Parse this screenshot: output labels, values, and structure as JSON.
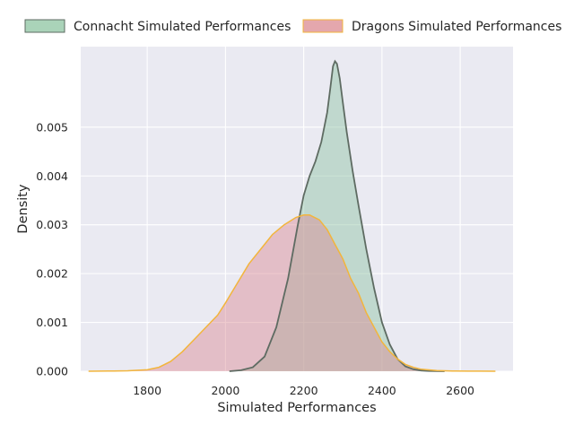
{
  "chart_data": {
    "type": "area",
    "title": "",
    "xlabel": "Simulated Performances",
    "ylabel": "Density",
    "xlim": [
      1630,
      2735
    ],
    "ylim": [
      0,
      0.00665
    ],
    "x_ticks": [
      1800,
      2000,
      2200,
      2400,
      2600
    ],
    "y_ticks": [
      0.0,
      0.001,
      0.002,
      0.003,
      0.004,
      0.005
    ],
    "y_tick_labels": [
      "0.000",
      "0.001",
      "0.002",
      "0.003",
      "0.004",
      "0.005"
    ],
    "grid": true,
    "legend": {
      "placement": "top",
      "columns": 2
    },
    "series": [
      {
        "name": "Connacht Simulated Performances",
        "fill_color": "#8dc4a2",
        "line_color": "#5e6b62",
        "x": [
          2010,
          2040,
          2070,
          2100,
          2130,
          2160,
          2185,
          2200,
          2215,
          2230,
          2245,
          2260,
          2268,
          2275,
          2280,
          2285,
          2292,
          2300,
          2310,
          2325,
          2340,
          2360,
          2380,
          2400,
          2420,
          2440,
          2460,
          2480,
          2500,
          2520,
          2540,
          2560
        ],
        "values": [
          0.0,
          2e-05,
          8e-05,
          0.0003,
          0.0009,
          0.0019,
          0.003,
          0.0036,
          0.004,
          0.0043,
          0.0047,
          0.0053,
          0.0058,
          0.00625,
          0.00635,
          0.0063,
          0.006,
          0.0055,
          0.0049,
          0.0041,
          0.0034,
          0.0025,
          0.0017,
          0.001,
          0.00055,
          0.00025,
          0.0001,
          4e-05,
          1.5e-05,
          6e-06,
          2e-06,
          0.0
        ]
      },
      {
        "name": "Dragons Simulated Performances",
        "fill_color": "#db8a92",
        "line_color": "#f2b53c",
        "x": [
          1650,
          1700,
          1750,
          1800,
          1830,
          1860,
          1890,
          1920,
          1950,
          1980,
          2000,
          2030,
          2060,
          2090,
          2120,
          2150,
          2180,
          2200,
          2215,
          2240,
          2260,
          2280,
          2300,
          2320,
          2340,
          2360,
          2380,
          2400,
          2420,
          2440,
          2460,
          2480,
          2500,
          2540,
          2580,
          2620,
          2650,
          2690
        ],
        "values": [
          0.0,
          3e-06,
          1e-05,
          3e-05,
          8e-05,
          0.0002,
          0.0004,
          0.00065,
          0.0009,
          0.00115,
          0.0014,
          0.0018,
          0.0022,
          0.0025,
          0.0028,
          0.003,
          0.00315,
          0.0032,
          0.0032,
          0.0031,
          0.0029,
          0.0026,
          0.0023,
          0.0019,
          0.0016,
          0.0012,
          0.0009,
          0.0006,
          0.0004,
          0.00025,
          0.00014,
          8e-05,
          4e-05,
          1.5e-05,
          6e-06,
          2e-06,
          1e-06,
          0.0
        ]
      }
    ]
  }
}
